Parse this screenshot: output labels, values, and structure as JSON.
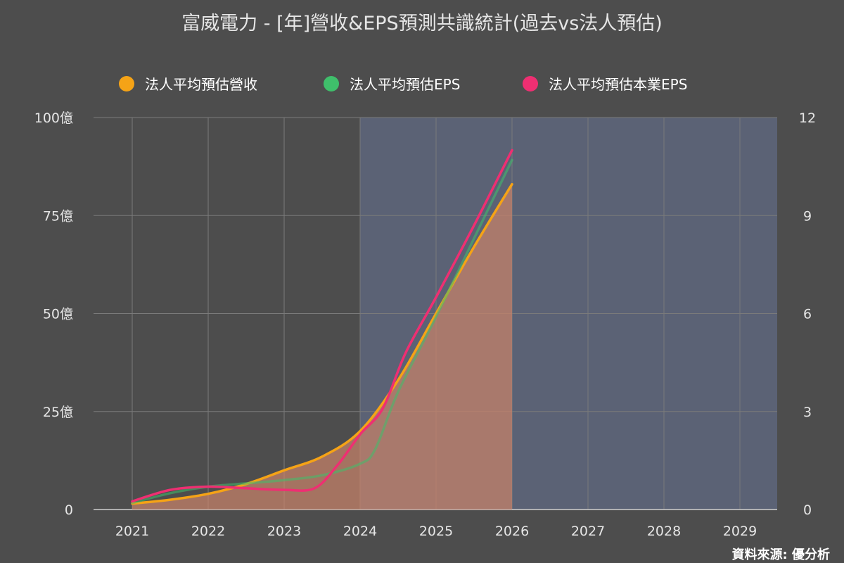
{
  "colors": {
    "background": "#4d4d4d",
    "forecast_band": "#5b6275",
    "grid": "#7a7a7a",
    "revenue": "#f5a316",
    "eps": "#3fbf6b",
    "core_eps": "#ee2f72",
    "area_fill": "#c8826a"
  },
  "chart_data": {
    "type": "line",
    "title": "富威電力 - [年]營收&EPS預測共識統計(過去vs法人預估)",
    "source_label": "資料來源: 優分析",
    "grid": true,
    "legend_position": "top",
    "x_labels": [
      "2021",
      "2022",
      "2023",
      "2024",
      "2025",
      "2026",
      "2027",
      "2028",
      "2029"
    ],
    "forecast_shading": {
      "from": "2024",
      "to": "2029",
      "color": "#5b6275"
    },
    "y_left": {
      "range": [
        0,
        100
      ],
      "tick_values": [
        0,
        25,
        50,
        75,
        100
      ],
      "tick_labels": [
        "0",
        "25億",
        "50億",
        "75億",
        "100億"
      ]
    },
    "y_right": {
      "range": [
        0,
        12
      ],
      "tick_values": [
        0,
        3,
        6,
        9,
        12
      ],
      "tick_labels": [
        "0",
        "3",
        "6",
        "9",
        "12"
      ]
    },
    "series": [
      {
        "name": "法人平均預估營收",
        "axis": "left",
        "unit": "億",
        "color": "#f5a316",
        "area": true,
        "x": [
          2021,
          2021.5,
          2022,
          2022.5,
          2023,
          2023.5,
          2024,
          2024.5,
          2025,
          2025.5,
          2026
        ],
        "y": [
          1.5,
          2.5,
          4,
          6.5,
          10,
          13.5,
          20,
          33,
          50,
          67,
          83
        ]
      },
      {
        "name": "法人平均預估EPS",
        "axis": "right",
        "unit": "",
        "color": "#3fbf6b",
        "area": false,
        "x": [
          2021,
          2021.5,
          2022,
          2022.5,
          2023,
          2023.5,
          2024,
          2024.2,
          2024.5,
          2025,
          2025.5,
          2026
        ],
        "y": [
          0.2,
          0.5,
          0.7,
          0.8,
          0.9,
          1.05,
          1.4,
          1.85,
          3.6,
          5.9,
          8.3,
          10.7
        ]
      },
      {
        "name": "法人平均預估本業EPS",
        "axis": "right",
        "unit": "",
        "color": "#ee2f72",
        "area": false,
        "x": [
          2021,
          2021.5,
          2022,
          2022.5,
          2023,
          2023.4,
          2023.7,
          2024,
          2024.3,
          2024.6,
          2025,
          2025.5,
          2026
        ],
        "y": [
          0.25,
          0.6,
          0.7,
          0.65,
          0.6,
          0.65,
          1.35,
          2.3,
          3.1,
          4.8,
          6.5,
          8.7,
          11.0
        ]
      }
    ]
  }
}
